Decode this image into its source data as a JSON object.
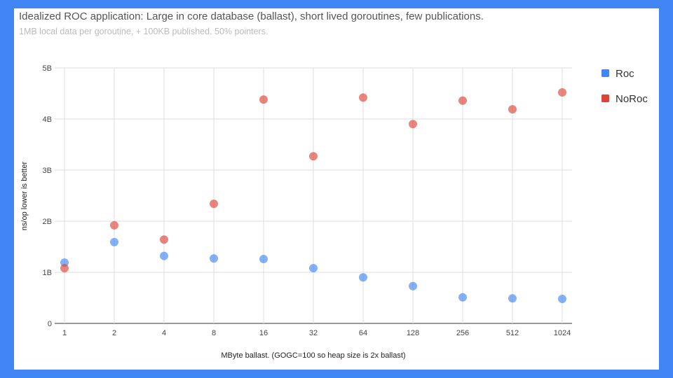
{
  "chart_data": {
    "type": "scatter",
    "title": "Idealized ROC application: Large in core database (ballast), short lived goroutines, few publications.",
    "subtitle": "1MB local data per goroutine, + 100KB published. 50% pointers.",
    "xlabel": "MByte ballast. (GOGC=100 so heap size is 2x ballast)",
    "ylabel": "ns/op lower is better",
    "categories": [
      "1",
      "2",
      "4",
      "8",
      "16",
      "32",
      "64",
      "128",
      "256",
      "512",
      "1024"
    ],
    "y_ticks": [
      {
        "value": 0,
        "label": "0"
      },
      {
        "value": 1,
        "label": "1B"
      },
      {
        "value": 2,
        "label": "2B"
      },
      {
        "value": 3,
        "label": "3B"
      },
      {
        "value": 4,
        "label": "4B"
      },
      {
        "value": 5,
        "label": "5B"
      }
    ],
    "ylim": [
      0,
      5
    ],
    "y_unit": "billions",
    "grid": true,
    "legend_position": "right",
    "series": [
      {
        "name": "Roc",
        "color": "#4285f4",
        "values": [
          1.19,
          1.59,
          1.32,
          1.27,
          1.26,
          1.08,
          0.9,
          0.73,
          0.51,
          0.49,
          0.48
        ]
      },
      {
        "name": "NoRoc",
        "color": "#db4437",
        "values": [
          1.08,
          1.92,
          1.64,
          2.34,
          4.38,
          3.27,
          4.42,
          3.9,
          4.36,
          4.19,
          4.52
        ]
      }
    ]
  }
}
